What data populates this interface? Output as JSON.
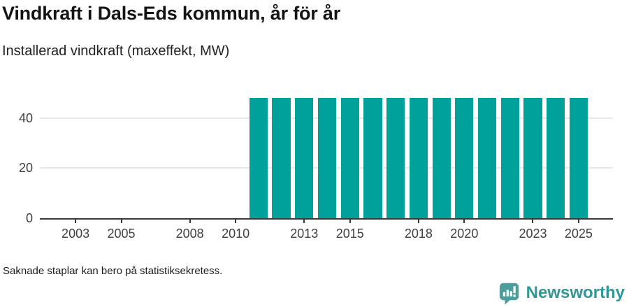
{
  "header": {
    "title": "Vindkraft i Dals-Eds kommun, år för år",
    "subtitle": "Installerad vindkraft (maxeffekt, MW)"
  },
  "chart_data": {
    "type": "bar",
    "title": "Vindkraft i Dals-Eds kommun, år för år",
    "subtitle": "Installerad vindkraft (maxeffekt, MW)",
    "unit": "MW",
    "xlabel": "",
    "ylabel": "Installerad vindkraft (maxeffekt, MW)",
    "categories": [
      2002,
      2003,
      2004,
      2005,
      2006,
      2007,
      2008,
      2009,
      2010,
      2011,
      2012,
      2013,
      2014,
      2015,
      2016,
      2017,
      2018,
      2019,
      2020,
      2021,
      2022,
      2023,
      2024,
      2025
    ],
    "values": [
      null,
      null,
      null,
      null,
      null,
      null,
      null,
      null,
      null,
      48,
      48,
      48,
      48,
      48,
      48,
      48,
      48,
      48,
      48,
      48,
      48,
      48,
      48,
      48
    ],
    "x_domain_end": 2026,
    "x_ticks": [
      2003,
      2005,
      2008,
      2010,
      2013,
      2015,
      2018,
      2020,
      2023,
      2025
    ],
    "y_ticks": [
      0,
      20,
      40
    ],
    "ylim": [
      0,
      50
    ],
    "grid": true,
    "legend_position": "none",
    "bar_color": "#00a19b",
    "grid_color": "#e7e7e7",
    "axis_color": "#3a3a3a",
    "tick_label_color": "#404040"
  },
  "footer": {
    "note": "Saknade staplar kan bero på statistiksekretess."
  },
  "brand": {
    "name": "Newsworthy",
    "text_color": "#2f9795",
    "icon_color": "#4a9f9e",
    "icon": "newsworthy-pin-icon"
  }
}
